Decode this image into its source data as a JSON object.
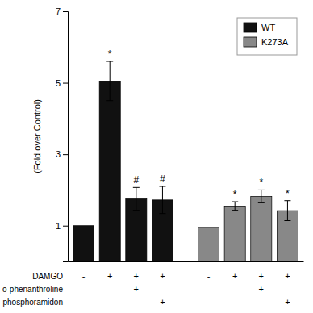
{
  "chart_data": {
    "type": "bar",
    "ylabel": "(Fold over Control)",
    "categories": [
      null,
      null,
      null,
      null,
      null,
      null,
      null,
      null
    ],
    "series": [
      {
        "name": "WT",
        "color": "#111111",
        "values": [
          1.0,
          5.05,
          1.75,
          1.72,
          null,
          null,
          null,
          null
        ],
        "errors": [
          0.0,
          0.55,
          0.32,
          0.38,
          null,
          null,
          null,
          null
        ],
        "annotations": [
          null,
          "*",
          "#",
          "#",
          null,
          null,
          null,
          null
        ]
      },
      {
        "name": "K273A",
        "color": "#888888",
        "values": [
          null,
          null,
          null,
          null,
          0.95,
          1.55,
          1.82,
          1.42
        ],
        "errors": [
          null,
          null,
          null,
          null,
          0.0,
          0.12,
          0.18,
          0.28
        ],
        "annotations": [
          null,
          null,
          null,
          null,
          null,
          "*",
          "*",
          "*"
        ]
      }
    ],
    "rows": [
      {
        "label": "DAMGO",
        "signs": [
          "-",
          "+",
          "+",
          "+",
          "-",
          "+",
          "+",
          "+"
        ]
      },
      {
        "label": "o-phenanthroline",
        "signs": [
          "-",
          "-",
          "+",
          "-",
          "-",
          "-",
          "+",
          "-"
        ]
      },
      {
        "label": "phosphoramidon",
        "signs": [
          "-",
          "-",
          "-",
          "+",
          "-",
          "-",
          "-",
          "+"
        ]
      }
    ],
    "ylim": [
      0,
      7
    ],
    "yticks": [
      1,
      3,
      5,
      7
    ],
    "legend": "upper right",
    "tick_labels": "y"
  }
}
